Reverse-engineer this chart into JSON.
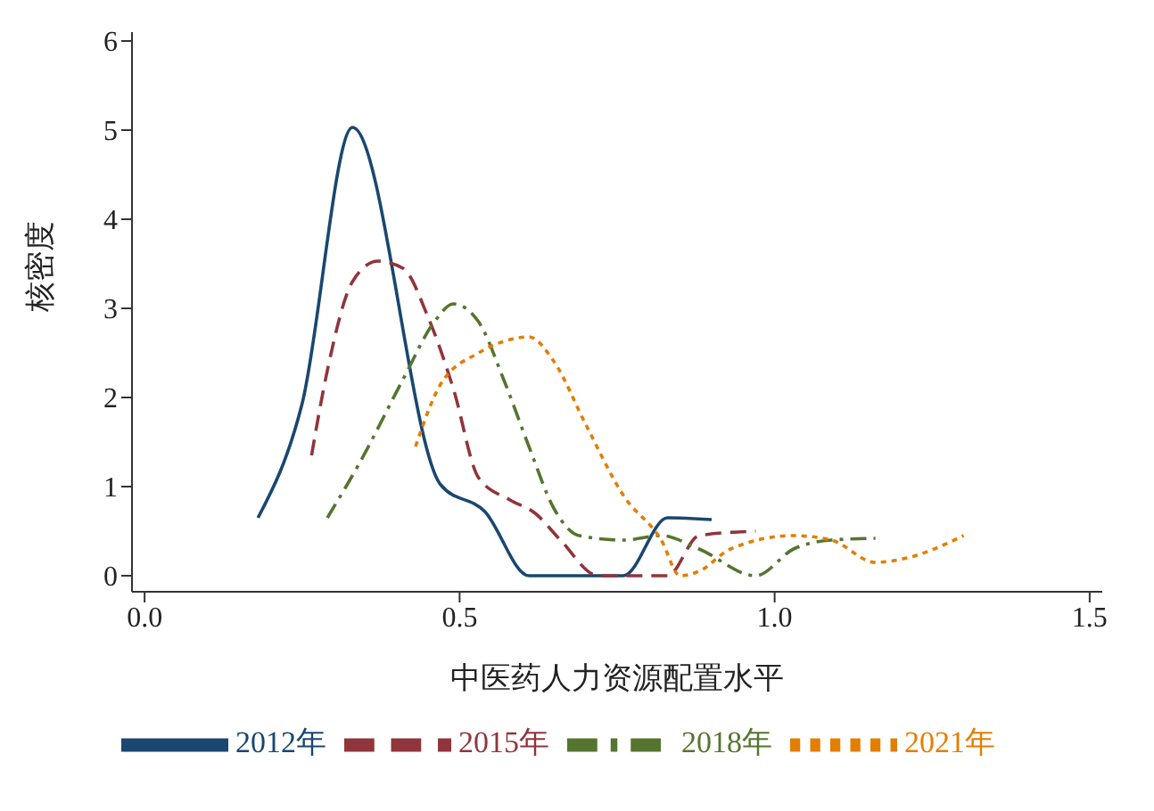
{
  "chart_data": {
    "type": "line",
    "xlabel": "中医药人力资源配置水平",
    "ylabel": "核密度",
    "xlim": [
      -0.02,
      1.52
    ],
    "ylim": [
      -0.18,
      6.1
    ],
    "xticks": [
      {
        "value": 0,
        "label": "0.0"
      },
      0.5,
      {
        "value": 1,
        "label": "1.0"
      },
      1.5
    ],
    "yticks": [
      0,
      1,
      2,
      3,
      4,
      5,
      6
    ],
    "grid": false,
    "legend": "bottom",
    "marker": "none",
    "series": [
      {
        "name": "2012年",
        "color": "#1a476f",
        "line_style": "solid",
        "x": [
          0.18,
          0.25,
          0.33,
          0.47,
          0.54,
          0.61,
          0.76,
          0.83,
          0.9
        ],
        "values": [
          0.65,
          1.93,
          5.03,
          1.02,
          0.72,
          0,
          0,
          0.65,
          0.63
        ]
      },
      {
        "name": "2015年",
        "color": "#90353b",
        "line_style": "dashed",
        "x": [
          0.265,
          0.29,
          0.33,
          0.37,
          0.41,
          0.45,
          0.49,
          0.53,
          0.58,
          0.62,
          0.66,
          0.72,
          0.83,
          0.88,
          0.97
        ],
        "values": [
          1.35,
          2.3,
          3.3,
          3.53,
          3.45,
          2.9,
          2.1,
          1.1,
          0.85,
          0.7,
          0.4,
          0,
          0,
          0.45,
          0.5
        ]
      },
      {
        "name": "2018年",
        "color": "#55752f",
        "line_style": "dashdot",
        "x": [
          0.29,
          0.34,
          0.41,
          0.46,
          0.49,
          0.53,
          0.57,
          0.61,
          0.65,
          0.69,
          0.76,
          0.82,
          0.88,
          0.97,
          1.03,
          1.09,
          1.16
        ],
        "values": [
          0.65,
          1.25,
          2.2,
          2.85,
          3.05,
          2.85,
          2.2,
          1.45,
          0.75,
          0.45,
          0.4,
          0.45,
          0.3,
          0,
          0.3,
          0.4,
          0.42
        ]
      },
      {
        "name": "2021年",
        "color": "#e37e00",
        "line_style": "dotted",
        "x": [
          0.43,
          0.47,
          0.53,
          0.58,
          0.61,
          0.65,
          0.7,
          0.76,
          0.82,
          0.85,
          0.88,
          0.93,
          1.03,
          1.09,
          1.16,
          1.21,
          1.3
        ],
        "values": [
          1.45,
          2.15,
          2.5,
          2.65,
          2.68,
          2.4,
          1.7,
          0.9,
          0.4,
          0,
          0.05,
          0.3,
          0.45,
          0.4,
          0.15,
          0.2,
          0.45
        ]
      }
    ]
  }
}
